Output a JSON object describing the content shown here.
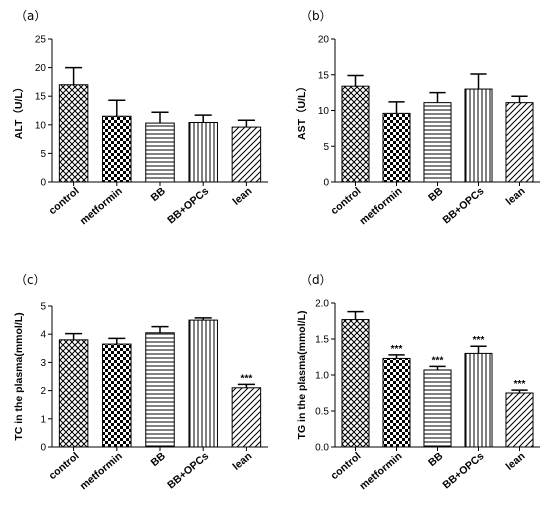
{
  "chart_data": [
    {
      "type": "bar",
      "panel": "（a）",
      "categories": [
        "control",
        "metformin",
        "BB",
        "BB+OPCs",
        "lean"
      ],
      "values": [
        17.0,
        11.5,
        10.3,
        10.4,
        9.6
      ],
      "errors": [
        3.0,
        2.8,
        1.9,
        1.3,
        1.2
      ],
      "significance": [
        "",
        "",
        "",
        "",
        ""
      ],
      "ylabel": "ALT（U/L）",
      "ylim": [
        0,
        25
      ],
      "yticks": [
        "0",
        "5",
        "10",
        "15",
        "20",
        "25"
      ],
      "grid": false
    },
    {
      "type": "bar",
      "panel": "（b）",
      "categories": [
        "control",
        "metformin",
        "BB",
        "BB+OPCs",
        "lean"
      ],
      "values": [
        13.4,
        9.6,
        11.1,
        13.0,
        11.1
      ],
      "errors": [
        1.5,
        1.6,
        1.4,
        2.1,
        0.9
      ],
      "significance": [
        "",
        "",
        "",
        "",
        ""
      ],
      "ylabel": "AST（U/L）",
      "ylim": [
        0,
        20
      ],
      "yticks": [
        "0",
        "5",
        "10",
        "15",
        "20"
      ],
      "grid": false
    },
    {
      "type": "bar",
      "panel": "（c）",
      "categories": [
        "control",
        "metformin",
        "BB",
        "BB+OPCs",
        "lean"
      ],
      "values": [
        3.8,
        3.65,
        4.05,
        4.5,
        2.1
      ],
      "errors": [
        0.22,
        0.2,
        0.22,
        0.08,
        0.12
      ],
      "significance": [
        "",
        "",
        "",
        "",
        "***"
      ],
      "ylabel": "TC in the plasma(mmol/L)",
      "ylim": [
        0,
        5
      ],
      "yticks": [
        "0",
        "1",
        "2",
        "3",
        "4",
        "5"
      ],
      "grid": false
    },
    {
      "type": "bar",
      "panel": "（d）",
      "categories": [
        "control",
        "metformin",
        "BB",
        "BB+OPCs",
        "lean"
      ],
      "values": [
        1.77,
        1.23,
        1.07,
        1.3,
        0.75
      ],
      "errors": [
        0.11,
        0.05,
        0.05,
        0.1,
        0.04
      ],
      "significance": [
        "",
        "***",
        "***",
        "***",
        "***"
      ],
      "ylabel": "TG in the plasma(mmol/L)",
      "ylim": [
        0,
        2.0
      ],
      "yticks": [
        "0.0",
        "0.5",
        "1.0",
        "1.5",
        "2.0"
      ],
      "grid": false
    }
  ],
  "colors": {
    "bar_fill": "#ffffff",
    "bar_stroke": "#000000",
    "pattern": "#000000"
  },
  "bar_patterns": [
    "crosshatch-diagonal",
    "checker",
    "horizontal-lines",
    "vertical-lines",
    "diagonal-lines"
  ]
}
